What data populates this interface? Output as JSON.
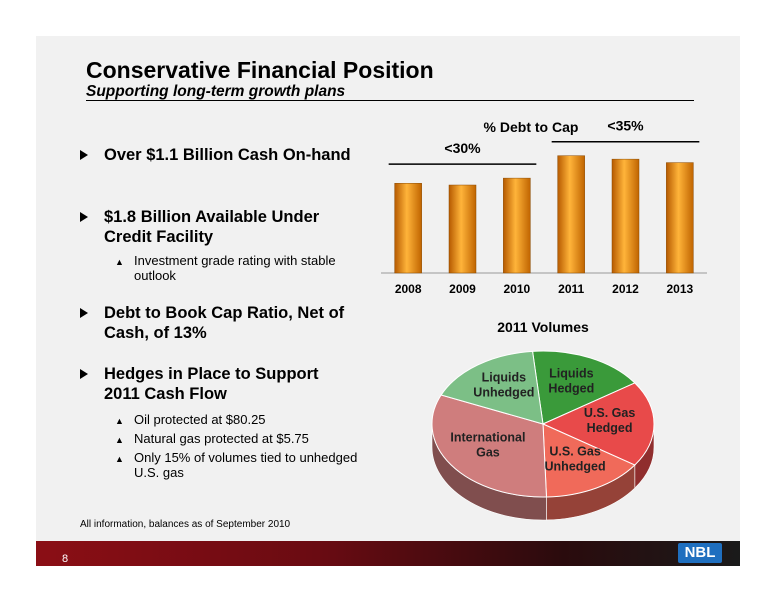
{
  "slide": {
    "title": "Conservative Financial Position",
    "subtitle": "Supporting long-term growth plans",
    "bullets": [
      {
        "text": "Over $1.1 Billion Cash On-hand"
      },
      {
        "text": "$1.8 Billion Available Under Credit Facility"
      },
      {
        "text": "Debt to Book Cap Ratio, Net of Cash, of 13%"
      },
      {
        "text": "Hedges in Place to Support 2011 Cash Flow"
      }
    ],
    "sub_bullets": [
      {
        "text": "Investment grade rating with stable outlook"
      },
      {
        "text": "Oil protected at $80.25"
      },
      {
        "text": "Natural gas protected at $5.75"
      },
      {
        "text": "Only 15% of volumes tied to unhedged U.S. gas"
      }
    ],
    "footnote": "All information, balances as of September  2010",
    "page_number": "8",
    "logo_text": "NBL",
    "colors": {
      "bar_orange": "#e8850a",
      "footer_red": "#8b0e15",
      "logo_blue": "#1f6fbf"
    }
  },
  "chart_data": [
    {
      "type": "bar",
      "title": "% Debt to Cap",
      "categories": [
        "2008",
        "2009",
        "2010",
        "2011",
        "2012",
        "2013"
      ],
      "values": [
        26,
        25.5,
        27.5,
        34,
        33,
        32
      ],
      "ylim": [
        0,
        40
      ],
      "grid": false,
      "annotations": [
        {
          "text": "<30%",
          "span": [
            "2008",
            "2010"
          ]
        },
        {
          "text": "<35%",
          "span": [
            "2011",
            "2013"
          ]
        }
      ]
    },
    {
      "type": "pie",
      "title": "2011 Volumes",
      "slices": [
        {
          "label": "Liquids Hedged",
          "value": 17,
          "color": "#3a9a3a"
        },
        {
          "label": "U.S. Gas Hedged",
          "value": 19,
          "color": "#e84a4a"
        },
        {
          "label": "U.S. Gas Unhedged",
          "value": 15,
          "color": "#f06a5a"
        },
        {
          "label": "International Gas",
          "value": 32,
          "color": "#cf7d7d"
        },
        {
          "label": "Liquids Unhedged",
          "value": 17,
          "color": "#7cbf86"
        }
      ]
    }
  ]
}
